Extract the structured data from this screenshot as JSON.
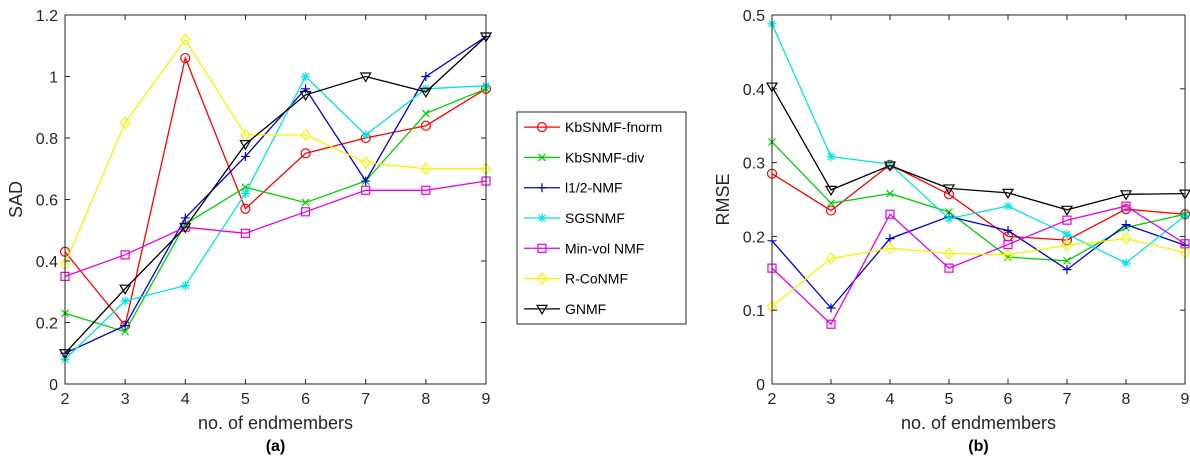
{
  "chart_data": [
    {
      "type": "line",
      "panel": "(a)",
      "xlabel": "no. of endmembers",
      "ylabel": "SAD",
      "xlim": [
        2,
        9
      ],
      "ylim": [
        0,
        1.2
      ],
      "x": [
        2,
        3,
        4,
        5,
        6,
        7,
        8,
        9
      ],
      "xticks": [
        "2",
        "3",
        "4",
        "5",
        "6",
        "7",
        "8",
        "9"
      ],
      "yticks": [
        "0",
        "0.2",
        "0.4",
        "0.6",
        "0.8",
        "1",
        "1.2"
      ],
      "grid": false,
      "series": [
        {
          "name": "KbSNMF-fnorm",
          "color": "#ff0000",
          "marker": "circle",
          "values": [
            0.43,
            0.19,
            1.06,
            0.57,
            0.75,
            0.8,
            0.84,
            0.96
          ]
        },
        {
          "name": "KbSNMF-div",
          "color": "#00d000",
          "marker": "x",
          "values": [
            0.23,
            0.17,
            0.52,
            0.64,
            0.59,
            0.66,
            0.88,
            0.96
          ]
        },
        {
          "name": "l1/2-NMF",
          "color": "#0000cc",
          "marker": "plus",
          "values": [
            0.1,
            0.19,
            0.54,
            0.74,
            0.96,
            0.66,
            1.0,
            1.13
          ]
        },
        {
          "name": "SGSNMF",
          "color": "#00e5e5",
          "marker": "asterisk",
          "values": [
            0.08,
            0.27,
            0.32,
            0.62,
            1.0,
            0.81,
            0.96,
            0.97
          ]
        },
        {
          "name": "Min-vol NMF",
          "color": "#e600e6",
          "marker": "square",
          "values": [
            0.35,
            0.42,
            0.51,
            0.49,
            0.56,
            0.63,
            0.63,
            0.66
          ]
        },
        {
          "name": "R-CoNMF",
          "color": "#f5f500",
          "marker": "diamond",
          "values": [
            0.39,
            0.85,
            1.12,
            0.81,
            0.81,
            0.72,
            0.7,
            0.7
          ]
        },
        {
          "name": "GNMF",
          "color": "#000000",
          "marker": "triangle-down",
          "values": [
            0.1,
            0.31,
            0.51,
            0.78,
            0.94,
            1.0,
            0.95,
            1.13
          ]
        }
      ]
    },
    {
      "type": "line",
      "panel": "(b)",
      "xlabel": "no. of endmembers",
      "ylabel": "RMSE",
      "xlim": [
        2,
        9
      ],
      "ylim": [
        0,
        0.5
      ],
      "x": [
        2,
        3,
        4,
        5,
        6,
        7,
        8,
        9
      ],
      "xticks": [
        "2",
        "3",
        "4",
        "5",
        "6",
        "7",
        "8",
        "9"
      ],
      "yticks": [
        "0",
        "0.1",
        "0.2",
        "0.3",
        "0.4",
        "0.5"
      ],
      "grid": false,
      "series": [
        {
          "name": "KbSNMF-fnorm",
          "color": "#ff0000",
          "marker": "circle",
          "values": [
            0.285,
            0.235,
            0.297,
            0.257,
            0.2,
            0.195,
            0.237,
            0.23
          ]
        },
        {
          "name": "KbSNMF-div",
          "color": "#00d000",
          "marker": "x",
          "values": [
            0.328,
            0.245,
            0.258,
            0.233,
            0.172,
            0.167,
            0.212,
            0.23
          ]
        },
        {
          "name": "l1/2-NMF",
          "color": "#0000cc",
          "marker": "plus",
          "values": [
            0.194,
            0.103,
            0.197,
            0.227,
            0.208,
            0.155,
            0.216,
            0.188
          ]
        },
        {
          "name": "SGSNMF",
          "color": "#00e5e5",
          "marker": "asterisk",
          "values": [
            0.488,
            0.308,
            0.298,
            0.224,
            0.241,
            0.203,
            0.164,
            0.228
          ]
        },
        {
          "name": "Min-vol NMF",
          "color": "#e600e6",
          "marker": "square",
          "values": [
            0.157,
            0.081,
            0.23,
            0.157,
            0.189,
            0.222,
            0.241,
            0.19
          ]
        },
        {
          "name": "R-CoNMF",
          "color": "#f5f500",
          "marker": "diamond",
          "values": [
            0.105,
            0.17,
            0.184,
            0.177,
            0.175,
            0.188,
            0.197,
            0.178
          ]
        },
        {
          "name": "GNMF",
          "color": "#000000",
          "marker": "triangle-down",
          "values": [
            0.403,
            0.263,
            0.296,
            0.265,
            0.259,
            0.236,
            0.257,
            0.258
          ]
        }
      ]
    }
  ],
  "legend": {
    "placement": "between panels",
    "entries": [
      "KbSNMF-fnorm",
      "KbSNMF-div",
      "l1/2-NMF",
      "SGSNMF",
      "Min-vol NMF",
      "R-CoNMF",
      "GNMF"
    ]
  }
}
